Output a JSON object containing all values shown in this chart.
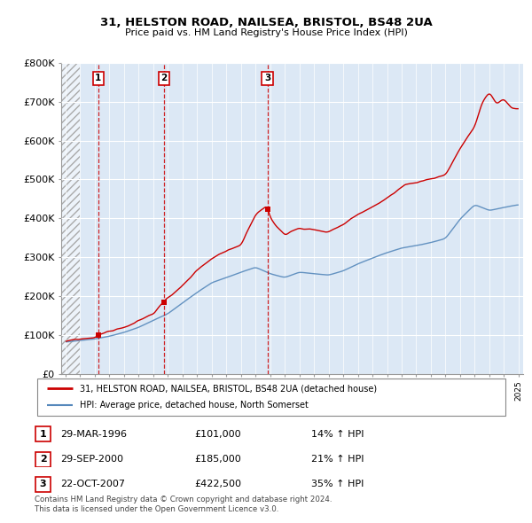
{
  "title_line1": "31, HELSTON ROAD, NAILSEA, BRISTOL, BS48 2UA",
  "title_line2": "Price paid vs. HM Land Registry's House Price Index (HPI)",
  "sale_dates": [
    1996.24,
    2000.75,
    2007.81
  ],
  "sale_prices": [
    101000,
    185000,
    422500
  ],
  "sale_labels": [
    "1",
    "2",
    "3"
  ],
  "hpi_color": "#5588bb",
  "price_color": "#cc0000",
  "dashed_color": "#cc0000",
  "xmin": 1993.7,
  "xmax": 2025.3,
  "ymin": 0,
  "ymax": 800000,
  "yticks": [
    0,
    100000,
    200000,
    300000,
    400000,
    500000,
    600000,
    700000,
    800000
  ],
  "ytick_labels": [
    "£0",
    "£100K",
    "£200K",
    "£300K",
    "£400K",
    "£500K",
    "£600K",
    "£700K",
    "£800K"
  ],
  "legend_line1": "31, HELSTON ROAD, NAILSEA, BRISTOL, BS48 2UA (detached house)",
  "legend_line2": "HPI: Average price, detached house, North Somerset",
  "table_rows": [
    [
      "1",
      "29-MAR-1996",
      "£101,000",
      "14% ↑ HPI"
    ],
    [
      "2",
      "29-SEP-2000",
      "£185,000",
      "21% ↑ HPI"
    ],
    [
      "3",
      "22-OCT-2007",
      "£422,500",
      "35% ↑ HPI"
    ]
  ],
  "footnote_line1": "Contains HM Land Registry data © Crown copyright and database right 2024.",
  "footnote_line2": "This data is licensed under the Open Government Licence v3.0.",
  "bg_color": "#dce8f5",
  "hatch_end": 1995.0
}
